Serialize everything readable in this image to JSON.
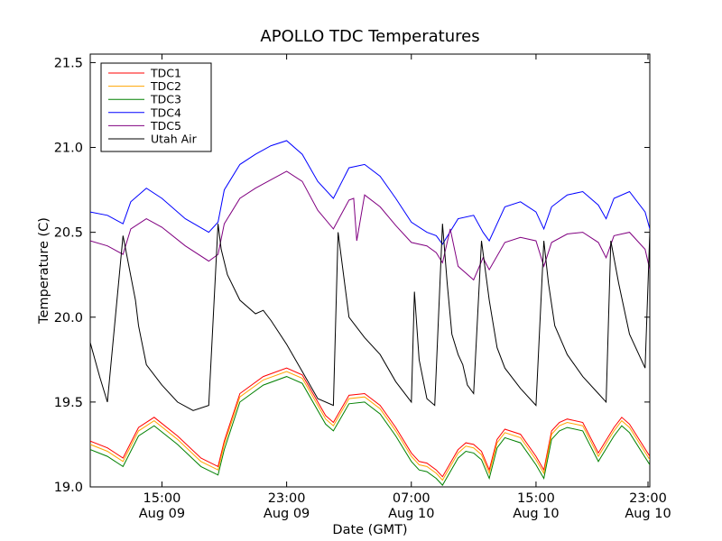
{
  "chart_data": {
    "type": "line",
    "title": "APOLLO TDC Temperatures",
    "xlabel": "Date (GMT)",
    "ylabel": "Temperature (C)",
    "xlim_hours": [
      10.4,
      46.3
    ],
    "ylim": [
      19.0,
      21.55
    ],
    "y_ticks": [
      {
        "value": 19.0,
        "label": "19.0"
      },
      {
        "value": 19.5,
        "label": "19.5"
      },
      {
        "value": 20.0,
        "label": "20.0"
      },
      {
        "value": 20.5,
        "label": "20.5"
      },
      {
        "value": 21.0,
        "label": "21.0"
      },
      {
        "value": 21.5,
        "label": "21.5"
      }
    ],
    "x_ticks": [
      {
        "hour": 15,
        "time": "15:00",
        "date": "Aug 09"
      },
      {
        "hour": 23,
        "time": "23:00",
        "date": "Aug 09"
      },
      {
        "hour": 31,
        "time": "07:00",
        "date": "Aug 10"
      },
      {
        "hour": 39,
        "time": "15:00",
        "date": "Aug 10"
      },
      {
        "hour": 47,
        "time": "23:00",
        "date": "Aug 10"
      }
    ],
    "legend_position": "upper-left",
    "series": [
      {
        "name": "TDC1",
        "color": "#ff0000",
        "x": [
          10.4,
          11.5,
          12.5,
          13.5,
          14.5,
          16.0,
          17.5,
          18.6,
          19.0,
          20.0,
          21.5,
          23.0,
          24.0,
          25.5,
          26.0,
          27.0,
          28.0,
          29.0,
          30.0,
          31.0,
          31.5,
          32.0,
          32.6,
          33.0,
          34.0,
          34.5,
          35.0,
          35.5,
          36.0,
          36.5,
          37.0,
          38.0,
          39.0,
          39.5,
          40.0,
          40.5,
          41.0,
          42.0,
          43.0,
          44.0,
          44.5,
          45.0,
          46.3
        ],
        "y": [
          19.27,
          19.23,
          19.17,
          19.35,
          19.41,
          19.3,
          19.17,
          19.12,
          19.27,
          19.55,
          19.65,
          19.7,
          19.66,
          19.42,
          19.38,
          19.54,
          19.55,
          19.48,
          19.35,
          19.2,
          19.15,
          19.14,
          19.1,
          19.06,
          19.22,
          19.26,
          19.25,
          19.21,
          19.1,
          19.28,
          19.34,
          19.31,
          19.18,
          19.1,
          19.33,
          19.38,
          19.4,
          19.38,
          19.2,
          19.35,
          19.41,
          19.37,
          19.18
        ]
      },
      {
        "name": "TDC2",
        "color": "#ffa500",
        "x": [
          10.4,
          11.5,
          12.5,
          13.5,
          14.5,
          16.0,
          17.5,
          18.6,
          19.0,
          20.0,
          21.5,
          23.0,
          24.0,
          25.5,
          26.0,
          27.0,
          28.0,
          29.0,
          30.0,
          31.0,
          31.5,
          32.0,
          32.6,
          33.0,
          34.0,
          34.5,
          35.0,
          35.5,
          36.0,
          36.5,
          37.0,
          38.0,
          39.0,
          39.5,
          40.0,
          40.5,
          41.0,
          42.0,
          43.0,
          44.0,
          44.5,
          45.0,
          46.3
        ],
        "y": [
          19.25,
          19.21,
          19.15,
          19.33,
          19.39,
          19.28,
          19.15,
          19.1,
          19.25,
          19.53,
          19.63,
          19.68,
          19.64,
          19.4,
          19.36,
          19.52,
          19.53,
          19.46,
          19.33,
          19.18,
          19.13,
          19.12,
          19.08,
          19.04,
          19.2,
          19.24,
          19.23,
          19.19,
          19.08,
          19.26,
          19.32,
          19.29,
          19.16,
          19.08,
          19.31,
          19.36,
          19.38,
          19.36,
          19.18,
          19.33,
          19.39,
          19.35,
          19.16
        ]
      },
      {
        "name": "TDC3",
        "color": "#008000",
        "x": [
          10.4,
          11.5,
          12.5,
          13.5,
          14.5,
          16.0,
          17.5,
          18.6,
          19.0,
          20.0,
          21.5,
          23.0,
          24.0,
          25.5,
          26.0,
          27.0,
          28.0,
          29.0,
          30.0,
          31.0,
          31.5,
          32.0,
          32.6,
          33.0,
          34.0,
          34.5,
          35.0,
          35.5,
          36.0,
          36.5,
          37.0,
          38.0,
          39.0,
          39.5,
          40.0,
          40.5,
          41.0,
          42.0,
          43.0,
          44.0,
          44.5,
          45.0,
          46.3
        ],
        "y": [
          19.22,
          19.18,
          19.12,
          19.3,
          19.36,
          19.25,
          19.12,
          19.07,
          19.22,
          19.5,
          19.6,
          19.65,
          19.61,
          19.37,
          19.33,
          19.49,
          19.5,
          19.43,
          19.3,
          19.15,
          19.1,
          19.09,
          19.05,
          19.01,
          19.17,
          19.21,
          19.2,
          19.16,
          19.05,
          19.23,
          19.29,
          19.26,
          19.13,
          19.05,
          19.28,
          19.33,
          19.35,
          19.33,
          19.15,
          19.3,
          19.36,
          19.32,
          19.13
        ]
      },
      {
        "name": "TDC4",
        "color": "#0000ff",
        "x": [
          10.4,
          11.5,
          12.5,
          13.0,
          14.0,
          15.0,
          16.5,
          18.0,
          18.6,
          19.0,
          20.0,
          21.0,
          22.0,
          23.0,
          24.0,
          25.0,
          26.0,
          27.0,
          28.0,
          29.0,
          30.0,
          31.0,
          32.0,
          32.6,
          33.0,
          34.0,
          35.0,
          35.6,
          36.0,
          37.0,
          38.0,
          39.0,
          39.5,
          40.0,
          41.0,
          42.0,
          43.0,
          43.5,
          44.0,
          45.0,
          46.0,
          46.3
        ],
        "y": [
          20.62,
          20.6,
          20.55,
          20.68,
          20.76,
          20.7,
          20.58,
          20.5,
          20.56,
          20.75,
          20.9,
          20.96,
          21.01,
          21.04,
          20.96,
          20.8,
          20.7,
          20.88,
          20.9,
          20.83,
          20.7,
          20.56,
          20.5,
          20.48,
          20.43,
          20.58,
          20.6,
          20.5,
          20.45,
          20.65,
          20.68,
          20.62,
          20.52,
          20.65,
          20.72,
          20.74,
          20.66,
          20.58,
          20.7,
          20.74,
          20.62,
          20.52
        ]
      },
      {
        "name": "TDC5",
        "color": "#800080",
        "x": [
          10.4,
          11.5,
          12.5,
          13.0,
          14.0,
          15.0,
          16.5,
          18.0,
          18.6,
          19.0,
          20.0,
          21.0,
          22.0,
          23.0,
          24.0,
          25.0,
          26.0,
          27.0,
          27.3,
          27.5,
          28.0,
          29.0,
          30.0,
          31.0,
          32.0,
          32.6,
          33.0,
          33.5,
          34.0,
          35.0,
          35.6,
          36.0,
          37.0,
          38.0,
          39.0,
          39.5,
          40.0,
          41.0,
          42.0,
          43.0,
          43.5,
          44.0,
          45.0,
          46.0,
          46.3
        ],
        "y": [
          20.45,
          20.42,
          20.37,
          20.52,
          20.58,
          20.53,
          20.42,
          20.33,
          20.37,
          20.55,
          20.7,
          20.76,
          20.81,
          20.86,
          20.8,
          20.63,
          20.52,
          20.69,
          20.7,
          20.45,
          20.72,
          20.65,
          20.54,
          20.44,
          20.42,
          20.38,
          20.32,
          20.52,
          20.3,
          20.22,
          20.35,
          20.28,
          20.44,
          20.47,
          20.45,
          20.3,
          20.44,
          20.49,
          20.5,
          20.44,
          20.35,
          20.48,
          20.5,
          20.4,
          20.28
        ]
      },
      {
        "name": "Utah Air",
        "color": "#000000",
        "x": [
          10.4,
          11.0,
          11.5,
          12.5,
          13.3,
          13.5,
          14.0,
          15.0,
          16.0,
          17.0,
          18.0,
          18.6,
          18.8,
          19.2,
          20.0,
          21.0,
          21.5,
          22.0,
          23.0,
          24.0,
          25.0,
          26.0,
          26.3,
          27.0,
          28.0,
          29.0,
          30.0,
          31.0,
          31.2,
          31.5,
          32.0,
          32.5,
          33.0,
          33.3,
          33.6,
          34.0,
          34.3,
          34.6,
          35.0,
          35.5,
          36.0,
          36.5,
          37.0,
          38.0,
          39.0,
          39.5,
          39.8,
          40.2,
          41.0,
          42.0,
          43.0,
          43.5,
          43.8,
          44.3,
          45.0,
          46.0,
          46.3
        ],
        "y": [
          19.85,
          19.65,
          19.5,
          20.48,
          20.1,
          19.95,
          19.72,
          19.6,
          19.5,
          19.45,
          19.48,
          20.55,
          20.4,
          20.25,
          20.1,
          20.02,
          20.04,
          19.98,
          19.84,
          19.68,
          19.52,
          19.48,
          20.5,
          20.0,
          19.88,
          19.78,
          19.62,
          19.5,
          20.15,
          19.75,
          19.52,
          19.48,
          20.55,
          20.2,
          19.9,
          19.78,
          19.72,
          19.6,
          19.55,
          20.45,
          20.1,
          19.82,
          19.7,
          19.58,
          19.48,
          20.45,
          20.2,
          19.95,
          19.78,
          19.65,
          19.55,
          19.5,
          20.45,
          20.2,
          19.9,
          19.7,
          20.5
        ]
      }
    ]
  }
}
